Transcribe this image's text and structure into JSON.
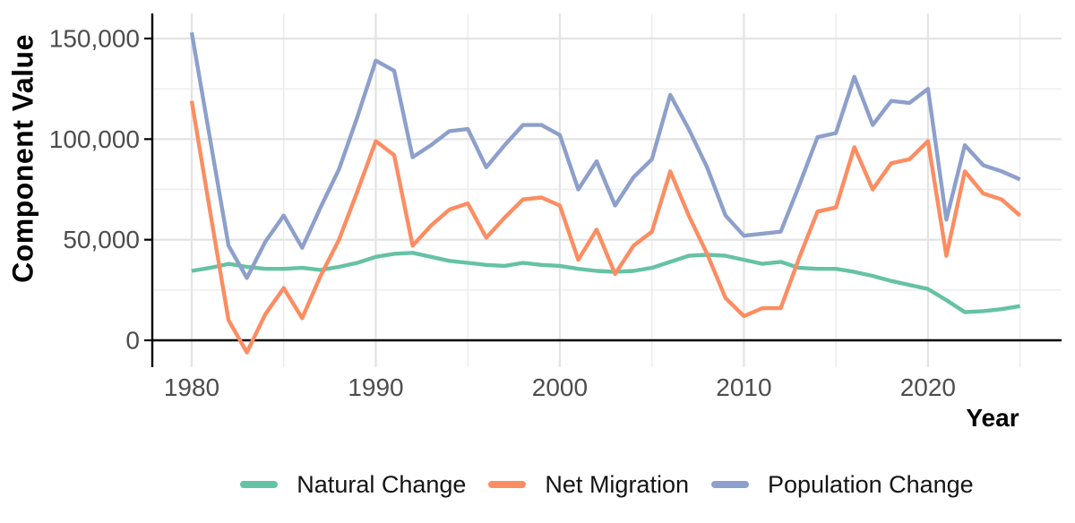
{
  "chart_data": {
    "type": "line",
    "title": "",
    "xlabel": "Year",
    "ylabel": "Component Value",
    "x": [
      1980,
      1981,
      1982,
      1983,
      1984,
      1985,
      1986,
      1987,
      1988,
      1989,
      1990,
      1991,
      1992,
      1993,
      1994,
      1995,
      1996,
      1997,
      1998,
      1999,
      2000,
      2001,
      2002,
      2003,
      2004,
      2005,
      2006,
      2007,
      2008,
      2009,
      2010,
      2011,
      2012,
      2013,
      2014,
      2015,
      2016,
      2017,
      2018,
      2019,
      2020,
      2021,
      2022,
      2023,
      2024,
      2025
    ],
    "series": [
      {
        "name": "Natural Change",
        "color": "#66C2A5",
        "values": [
          34500,
          36000,
          38000,
          36500,
          35500,
          35500,
          36000,
          35000,
          36500,
          38500,
          41500,
          43000,
          43500,
          41500,
          39500,
          38500,
          37500,
          37000,
          38500,
          37500,
          37000,
          35500,
          34500,
          34000,
          34500,
          36000,
          39000,
          42000,
          42500,
          42000,
          40000,
          38000,
          39000,
          36000,
          35500,
          35500,
          34000,
          32000,
          29500,
          27500,
          25500,
          20000,
          14000,
          14500,
          15500,
          17000
        ]
      },
      {
        "name": "Net Migration",
        "color": "#FC8D62",
        "values": [
          119000,
          64000,
          10000,
          -6000,
          13000,
          26000,
          11000,
          32000,
          50000,
          74000,
          99000,
          92000,
          47000,
          57000,
          65000,
          68000,
          51000,
          61000,
          70000,
          71000,
          67000,
          40000,
          55000,
          33000,
          47000,
          54000,
          84000,
          62000,
          43000,
          21000,
          12000,
          16000,
          16000,
          41000,
          64000,
          66000,
          96000,
          75000,
          88000,
          90000,
          99000,
          42000,
          84000,
          73000,
          70000,
          62000
        ]
      },
      {
        "name": "Population Change",
        "color": "#8DA0CB",
        "values": [
          153000,
          100000,
          47000,
          31000,
          49000,
          62000,
          46000,
          66000,
          85000,
          111000,
          139000,
          134000,
          91000,
          97000,
          104000,
          105000,
          86000,
          97000,
          107000,
          107000,
          102000,
          75000,
          89000,
          67000,
          81000,
          90000,
          122000,
          105000,
          86000,
          62000,
          52000,
          53000,
          54000,
          77000,
          101000,
          103000,
          131000,
          107000,
          119000,
          118000,
          125000,
          60000,
          97000,
          87000,
          84000,
          80000
        ]
      }
    ],
    "xlim": [
      1977.9,
      2027.2
    ],
    "ylim": [
      -13300,
      162500
    ],
    "xticks": [
      1980,
      1990,
      2000,
      2010,
      2020
    ],
    "xtick_labels": [
      "1980",
      "1990",
      "2000",
      "2010",
      "2020"
    ],
    "minor_xticks": [
      1985,
      1995,
      2005,
      2015,
      2025
    ],
    "yticks": [
      0,
      50000,
      100000,
      150000
    ],
    "ytick_labels": [
      "0",
      "50,000",
      "100,000",
      "150,000"
    ],
    "minor_yticks": [
      25000,
      75000,
      125000
    ],
    "grid": true,
    "legend_position": "bottom",
    "zero_line": true
  },
  "legend": {
    "items": [
      {
        "label": "Natural Change",
        "color": "#66C2A5"
      },
      {
        "label": "Net Migration",
        "color": "#FC8D62"
      },
      {
        "label": "Population Change",
        "color": "#8DA0CB"
      }
    ]
  },
  "colors": {
    "background": "#FFFFFF",
    "grid_major": "#E3E3E3",
    "grid_minor": "#ECECEC",
    "axis_line": "#000000",
    "tick_text": "#4D4D4D",
    "title_text": "#000000"
  }
}
